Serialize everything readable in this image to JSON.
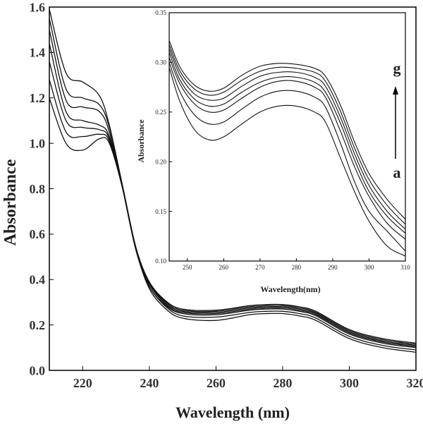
{
  "chart_data": [
    {
      "type": "line",
      "xlabel": "Wavelength (nm)",
      "ylabel": "Absorbance",
      "xlim": [
        210,
        320
      ],
      "ylim": [
        0.0,
        1.6
      ],
      "xticks": [
        "220",
        "240",
        "260",
        "280",
        "300",
        "320"
      ],
      "yticks": [
        "0.0",
        "0.2",
        "0.4",
        "0.6",
        "0.8",
        "1.0",
        "1.2",
        "1.4",
        "1.6"
      ],
      "grid": false,
      "series": [
        {
          "x": [
            210,
            215,
            220,
            225,
            228,
            232,
            236,
            240,
            245,
            250,
            260,
            270,
            275,
            280,
            285,
            290,
            300,
            310,
            320
          ],
          "y": [
            1.2,
            1.0,
            0.97,
            1.02,
            1.0,
            0.8,
            0.53,
            0.36,
            0.27,
            0.23,
            0.22,
            0.245,
            0.25,
            0.25,
            0.24,
            0.22,
            0.14,
            0.1,
            0.08
          ]
        },
        {
          "x": [
            210,
            215,
            220,
            225,
            228,
            232,
            236,
            240,
            245,
            250,
            260,
            270,
            275,
            280,
            285,
            290,
            300,
            310,
            320
          ],
          "y": [
            1.28,
            1.05,
            1.03,
            1.04,
            1.01,
            0.8,
            0.53,
            0.37,
            0.28,
            0.24,
            0.235,
            0.255,
            0.26,
            0.26,
            0.25,
            0.23,
            0.15,
            0.11,
            0.09
          ]
        },
        {
          "x": [
            210,
            215,
            220,
            225,
            228,
            232,
            236,
            240,
            245,
            250,
            260,
            270,
            275,
            280,
            285,
            290,
            300,
            310,
            320
          ],
          "y": [
            1.36,
            1.1,
            1.07,
            1.06,
            1.02,
            0.8,
            0.53,
            0.37,
            0.285,
            0.25,
            0.245,
            0.265,
            0.27,
            0.27,
            0.26,
            0.24,
            0.16,
            0.12,
            0.1
          ]
        },
        {
          "x": [
            210,
            215,
            220,
            225,
            228,
            232,
            236,
            240,
            245,
            250,
            260,
            270,
            275,
            280,
            285,
            290,
            300,
            310,
            320
          ],
          "y": [
            1.44,
            1.14,
            1.1,
            1.08,
            1.03,
            0.8,
            0.53,
            0.38,
            0.29,
            0.255,
            0.25,
            0.27,
            0.275,
            0.275,
            0.265,
            0.245,
            0.165,
            0.125,
            0.105
          ]
        },
        {
          "x": [
            210,
            215,
            220,
            225,
            228,
            232,
            236,
            240,
            245,
            250,
            260,
            270,
            275,
            280,
            285,
            290,
            300,
            310,
            320
          ],
          "y": [
            1.5,
            1.19,
            1.16,
            1.14,
            1.05,
            0.8,
            0.53,
            0.38,
            0.295,
            0.26,
            0.255,
            0.275,
            0.28,
            0.28,
            0.27,
            0.25,
            0.17,
            0.13,
            0.11
          ]
        },
        {
          "x": [
            210,
            215,
            220,
            225,
            228,
            232,
            236,
            240,
            245,
            250,
            260,
            270,
            275,
            280,
            285,
            290,
            300,
            310,
            320
          ],
          "y": [
            1.55,
            1.24,
            1.2,
            1.17,
            1.07,
            0.81,
            0.54,
            0.385,
            0.3,
            0.265,
            0.26,
            0.28,
            0.285,
            0.285,
            0.275,
            0.255,
            0.175,
            0.135,
            0.115
          ]
        },
        {
          "x": [
            210,
            215,
            220,
            225,
            228,
            232,
            236,
            240,
            245,
            250,
            260,
            270,
            275,
            280,
            285,
            290,
            300,
            310,
            320
          ],
          "y": [
            1.59,
            1.31,
            1.27,
            1.21,
            1.08,
            0.81,
            0.54,
            0.39,
            0.305,
            0.27,
            0.265,
            0.285,
            0.29,
            0.29,
            0.28,
            0.26,
            0.18,
            0.14,
            0.12
          ]
        }
      ]
    },
    {
      "type": "line",
      "xlabel": "Wavelength(nm)",
      "ylabel": "Absorbance",
      "xlim": [
        245,
        310
      ],
      "ylim": [
        0.1,
        0.35
      ],
      "xticks": [
        "250",
        "260",
        "270",
        "280",
        "290",
        "300",
        "310"
      ],
      "yticks": [
        "0.10",
        "0.15",
        "0.20",
        "0.25",
        "0.30",
        "0.35"
      ],
      "annotations": [
        "g",
        "a"
      ],
      "series": [
        {
          "x": [
            245,
            248,
            252,
            256,
            260,
            265,
            270,
            275,
            280,
            285,
            288,
            292,
            296,
            300,
            305,
            310
          ],
          "y": [
            0.295,
            0.26,
            0.232,
            0.222,
            0.225,
            0.238,
            0.25,
            0.256,
            0.256,
            0.25,
            0.24,
            0.205,
            0.17,
            0.14,
            0.115,
            0.105
          ]
        },
        {
          "x": [
            245,
            248,
            252,
            256,
            260,
            265,
            270,
            275,
            280,
            285,
            288,
            292,
            296,
            300,
            305,
            310
          ],
          "y": [
            0.3,
            0.27,
            0.247,
            0.238,
            0.24,
            0.253,
            0.265,
            0.271,
            0.271,
            0.265,
            0.255,
            0.22,
            0.18,
            0.15,
            0.13,
            0.11
          ]
        },
        {
          "x": [
            245,
            248,
            252,
            256,
            260,
            265,
            270,
            275,
            280,
            285,
            288,
            292,
            296,
            300,
            305,
            310
          ],
          "y": [
            0.305,
            0.278,
            0.258,
            0.25,
            0.252,
            0.264,
            0.275,
            0.281,
            0.281,
            0.275,
            0.265,
            0.232,
            0.195,
            0.165,
            0.138,
            0.122
          ]
        },
        {
          "x": [
            245,
            248,
            252,
            256,
            260,
            265,
            270,
            275,
            280,
            285,
            288,
            292,
            296,
            300,
            305,
            310
          ],
          "y": [
            0.31,
            0.282,
            0.263,
            0.256,
            0.258,
            0.27,
            0.28,
            0.285,
            0.285,
            0.28,
            0.27,
            0.24,
            0.202,
            0.17,
            0.145,
            0.128
          ]
        },
        {
          "x": [
            245,
            248,
            252,
            256,
            260,
            265,
            270,
            275,
            280,
            285,
            288,
            292,
            296,
            300,
            305,
            310
          ],
          "y": [
            0.314,
            0.287,
            0.268,
            0.262,
            0.264,
            0.276,
            0.286,
            0.29,
            0.29,
            0.285,
            0.276,
            0.246,
            0.208,
            0.176,
            0.15,
            0.132
          ]
        },
        {
          "x": [
            245,
            248,
            252,
            256,
            260,
            265,
            270,
            275,
            280,
            285,
            288,
            292,
            296,
            300,
            305,
            310
          ],
          "y": [
            0.318,
            0.291,
            0.273,
            0.267,
            0.27,
            0.282,
            0.291,
            0.295,
            0.294,
            0.29,
            0.281,
            0.252,
            0.214,
            0.182,
            0.156,
            0.137
          ]
        },
        {
          "x": [
            245,
            248,
            252,
            256,
            260,
            265,
            270,
            275,
            280,
            285,
            288,
            292,
            296,
            300,
            305,
            310
          ],
          "y": [
            0.322,
            0.295,
            0.277,
            0.271,
            0.274,
            0.287,
            0.296,
            0.299,
            0.298,
            0.294,
            0.286,
            0.258,
            0.22,
            0.188,
            0.162,
            0.142
          ]
        }
      ]
    }
  ]
}
